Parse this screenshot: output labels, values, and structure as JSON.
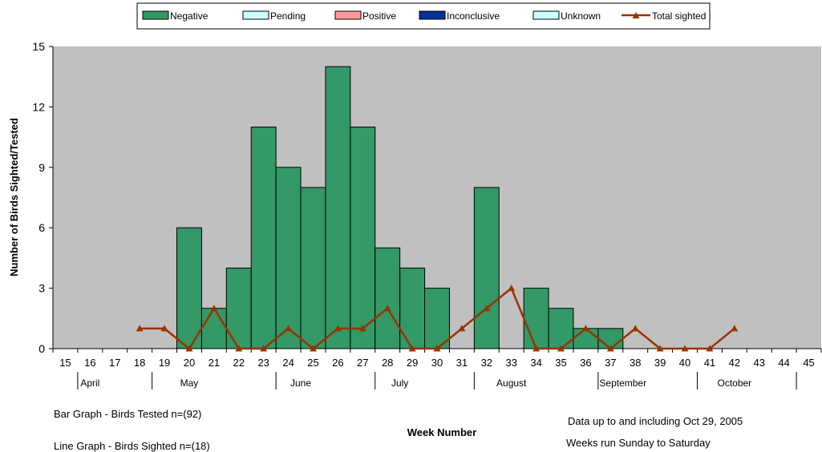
{
  "chart_data": {
    "type": "bar",
    "categories": [
      "15",
      "16",
      "17",
      "18",
      "19",
      "20",
      "21",
      "22",
      "23",
      "24",
      "25",
      "26",
      "27",
      "28",
      "29",
      "30",
      "31",
      "32",
      "33",
      "34",
      "35",
      "36",
      "37",
      "38",
      "39",
      "40",
      "41",
      "42",
      "43",
      "44",
      "45"
    ],
    "series": [
      {
        "name": "Negative",
        "type": "bar",
        "color": "#339966",
        "values": [
          0,
          0,
          0,
          0,
          0,
          6,
          2,
          4,
          11,
          9,
          8,
          14,
          11,
          5,
          4,
          3,
          0,
          8,
          0,
          3,
          2,
          1,
          1,
          0,
          0,
          0,
          0,
          0,
          0,
          0,
          0
        ]
      },
      {
        "name": "Pending",
        "type": "bar",
        "color": "#ccffff",
        "values": [
          0,
          0,
          0,
          0,
          0,
          0,
          0,
          0,
          0,
          0,
          0,
          0,
          0,
          0,
          0,
          0,
          0,
          0,
          0,
          0,
          0,
          0,
          0,
          0,
          0,
          0,
          0,
          0,
          0,
          0,
          0
        ]
      },
      {
        "name": "Positive",
        "type": "bar",
        "color": "#ff9999",
        "values": [
          0,
          0,
          0,
          0,
          0,
          0,
          0,
          0,
          0,
          0,
          0,
          0,
          0,
          0,
          0,
          0,
          0,
          0,
          0,
          0,
          0,
          0,
          0,
          0,
          0,
          0,
          0,
          0,
          0,
          0,
          0
        ]
      },
      {
        "name": "Inconclusive",
        "type": "bar",
        "color": "#003399",
        "values": [
          0,
          0,
          0,
          0,
          0,
          0,
          0,
          0,
          0,
          0,
          0,
          0,
          0,
          0,
          0,
          0,
          0,
          0,
          0,
          0,
          0,
          0,
          0,
          0,
          0,
          0,
          0,
          0,
          0,
          0,
          0
        ]
      },
      {
        "name": "Unknown",
        "type": "bar",
        "color": "#ccffff",
        "values": [
          0,
          0,
          0,
          0,
          0,
          0,
          0,
          0,
          0,
          0,
          0,
          0,
          0,
          0,
          0,
          0,
          0,
          0,
          0,
          0,
          0,
          0,
          0,
          0,
          0,
          0,
          0,
          0,
          0,
          0,
          0
        ]
      },
      {
        "name": "Total sighted",
        "type": "line",
        "color": "#993300",
        "values": [
          null,
          null,
          null,
          1,
          1,
          0,
          2,
          0,
          0,
          1,
          0,
          1,
          1,
          2,
          0,
          0,
          1,
          2,
          3,
          0,
          0,
          1,
          0,
          1,
          0,
          0,
          0,
          1,
          null,
          null,
          null
        ]
      }
    ],
    "ylabel": "Number of Birds Sighted/Tested",
    "xlabel": "Week Number",
    "ylim": [
      0,
      15
    ],
    "yticks": [
      0,
      3,
      6,
      9,
      12,
      15
    ],
    "months": [
      {
        "label": "April",
        "from": "15",
        "to": "17"
      },
      {
        "label": "May",
        "from": "18",
        "to": "22"
      },
      {
        "label": "June",
        "from": "23",
        "to": "26"
      },
      {
        "label": "July",
        "from": "27",
        "to": "30"
      },
      {
        "label": "August",
        "from": "31",
        "to": "35"
      },
      {
        "label": "September",
        "from": "36",
        "to": "39"
      },
      {
        "label": "October",
        "from": "40",
        "to": "44"
      }
    ],
    "legend_position": "top",
    "plot_background": "#c0c0c0",
    "gridlines": false
  },
  "notes": {
    "bar_note": "Bar Graph - Birds Tested n=(92)",
    "line_note": "Line Graph - Birds Sighted n=(18)",
    "date_note": "Data up to and including Oct 29, 2005",
    "weeks_note": "Weeks run Sunday to Saturday"
  }
}
